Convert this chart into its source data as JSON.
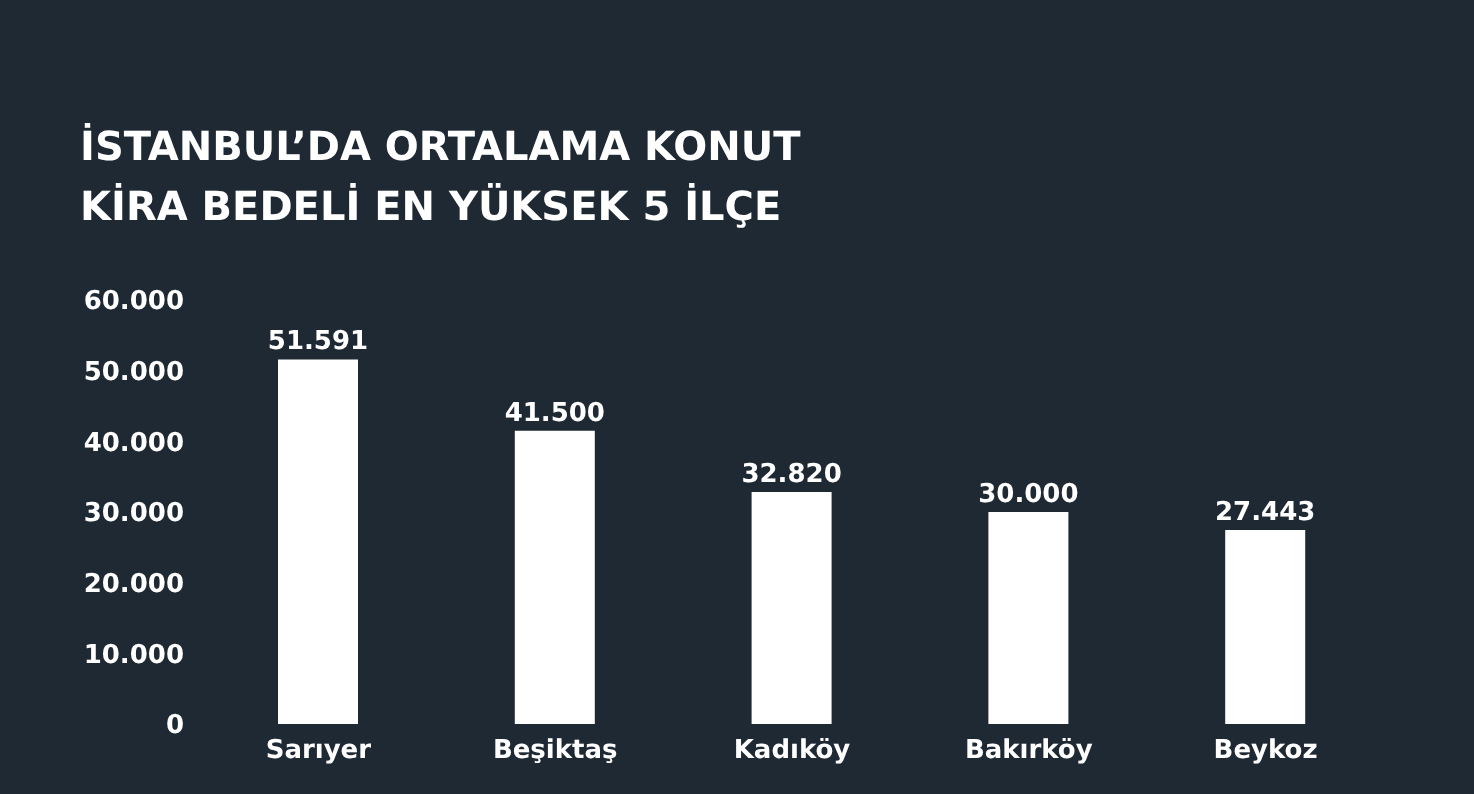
{
  "chart_data": {
    "type": "bar",
    "title": "İSTANBUL’DA ORTALAMA KONUT KİRA BEDELİ EN YÜKSEK 5 İLÇE",
    "categories": [
      "Sarıyer",
      "Beşiktaş",
      "Kadıköy",
      "Bakırköy",
      "Beykoz"
    ],
    "values": [
      51591,
      41500,
      32820,
      30000,
      27443
    ],
    "value_labels": [
      "51.591",
      "41.500",
      "32.820",
      "30.000",
      "27.443"
    ],
    "color": "#ffffff",
    "ylim": [
      0,
      60000
    ],
    "yticks": [
      {
        "value": 0,
        "label": "0"
      },
      {
        "value": 10000,
        "label": "10.000"
      },
      {
        "value": 20000,
        "label": "20.000"
      },
      {
        "value": 30000,
        "label": "30.000"
      },
      {
        "value": 40000,
        "label": "40.000"
      },
      {
        "value": 50000,
        "label": "50.000"
      },
      {
        "value": 60000,
        "label": "60.000"
      }
    ],
    "grid": false
  }
}
